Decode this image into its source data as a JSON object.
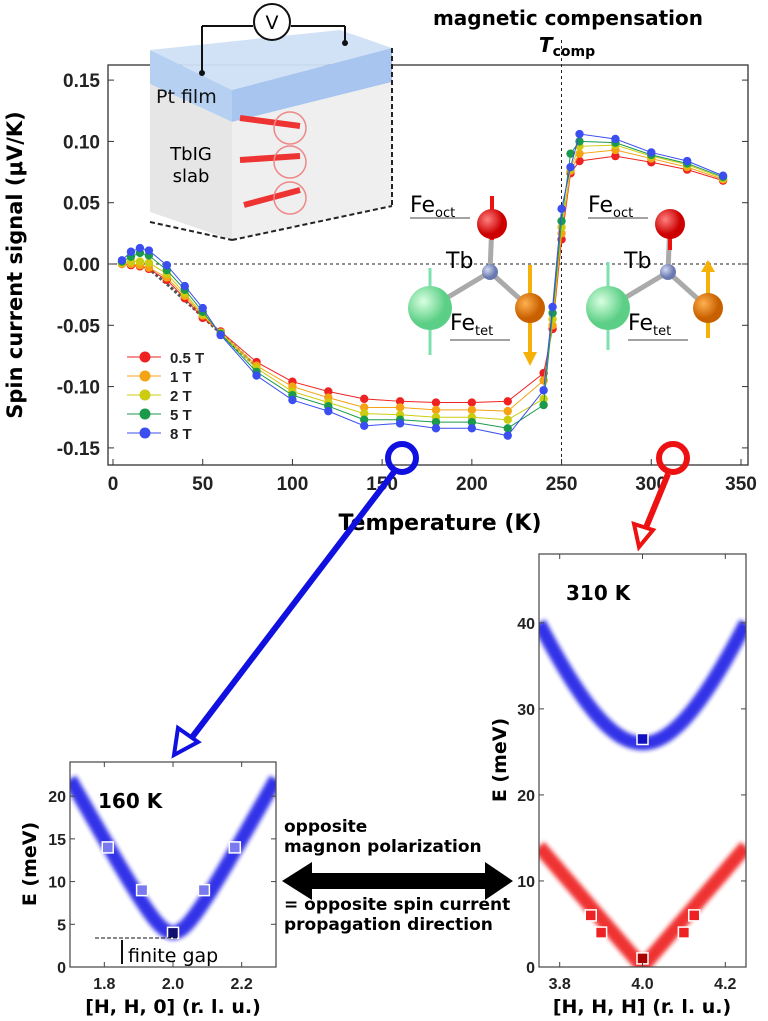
{
  "header": {
    "line1": "magnetic compensation",
    "tcomp_T": "T",
    "tcomp_sub": "comp"
  },
  "schematic": {
    "voltmeter": "V",
    "pt_film": "Pt film",
    "slab_line1": "TbIG",
    "slab_line2": "slab"
  },
  "molecule_left": {
    "fe_oct": "Fe",
    "fe_oct_sub": "oct",
    "tb": "Tb",
    "fe_tet": "Fe",
    "fe_tet_sub": "tet"
  },
  "molecule_right": {
    "fe_oct": "Fe",
    "fe_oct_sub": "oct",
    "tb": "Tb",
    "fe_tet": "Fe",
    "fe_tet_sub": "tet"
  },
  "middle_text": {
    "line1": "opposite",
    "line2": "magnon polarization",
    "line3": "= opposite spin current",
    "line4": "propagation direction"
  },
  "chart_data": [
    {
      "type": "line",
      "xlabel": "Temperature (K)",
      "ylabel": "Spin current signal (μV/K)",
      "xlim": [
        0,
        350
      ],
      "ylim": [
        -0.16,
        0.16
      ],
      "xticks": [
        "0",
        "50",
        "100",
        "150",
        "200",
        "250",
        "300",
        "350"
      ],
      "yticks": [
        "0.15",
        "0.10",
        "0.05",
        "0.00",
        "-0.05",
        "-0.10",
        "-0.15"
      ],
      "legend_position": "lower-left",
      "x": [
        5,
        10,
        15,
        20,
        30,
        40,
        50,
        60,
        80,
        100,
        120,
        140,
        160,
        180,
        200,
        220,
        240,
        245,
        250,
        255,
        260,
        280,
        300,
        320,
        340
      ],
      "series": [
        {
          "name": "0.5 T",
          "color": "#ee2222",
          "values": [
            0.0,
            -0.001,
            -0.002,
            -0.004,
            -0.013,
            -0.028,
            -0.044,
            -0.055,
            -0.08,
            -0.096,
            -0.104,
            -0.11,
            -0.112,
            -0.113,
            -0.113,
            -0.112,
            -0.089,
            -0.053,
            0.02,
            0.074,
            0.084,
            0.088,
            0.083,
            0.077,
            0.068
          ]
        },
        {
          "name": "1 T",
          "color": "#f5a214",
          "values": [
            0.0,
            0.0,
            -0.001,
            -0.003,
            -0.011,
            -0.026,
            -0.042,
            -0.056,
            -0.083,
            -0.1,
            -0.109,
            -0.117,
            -0.117,
            -0.119,
            -0.119,
            -0.12,
            -0.095,
            -0.05,
            0.025,
            0.076,
            0.09,
            0.093,
            0.086,
            0.079,
            0.069
          ]
        },
        {
          "name": "2 T",
          "color": "#cccc10",
          "values": [
            0.001,
            0.002,
            0.002,
            0.001,
            -0.008,
            -0.024,
            -0.041,
            -0.056,
            -0.085,
            -0.104,
            -0.113,
            -0.122,
            -0.123,
            -0.125,
            -0.125,
            -0.127,
            -0.11,
            -0.045,
            0.03,
            0.078,
            0.096,
            0.097,
            0.088,
            0.081,
            0.07
          ]
        },
        {
          "name": "5 T",
          "color": "#1a9a4a",
          "values": [
            0.002,
            0.006,
            0.009,
            0.007,
            -0.005,
            -0.021,
            -0.039,
            -0.057,
            -0.088,
            -0.107,
            -0.116,
            -0.127,
            -0.127,
            -0.129,
            -0.129,
            -0.134,
            -0.115,
            -0.04,
            0.035,
            0.09,
            0.1,
            0.099,
            0.089,
            0.082,
            0.071
          ]
        },
        {
          "name": "8 T",
          "color": "#3b4ef0",
          "values": [
            0.003,
            0.01,
            0.013,
            0.011,
            -0.001,
            -0.018,
            -0.036,
            -0.058,
            -0.091,
            -0.111,
            -0.12,
            -0.132,
            -0.13,
            -0.134,
            -0.134,
            -0.14,
            -0.103,
            -0.035,
            0.045,
            0.079,
            0.106,
            0.102,
            0.091,
            0.084,
            0.072
          ]
        }
      ],
      "reference_lines": {
        "y": 0,
        "x": 250
      },
      "markers": [
        {
          "T": 160,
          "color": "#1010e0"
        },
        {
          "T": 310,
          "color": "#ee1111"
        }
      ]
    },
    {
      "type": "heatmap",
      "annotation": "160 K",
      "xlabel": "[H, H, 0] (r. l. u.)",
      "ylabel": "E (meV)",
      "xlim": [
        1.7,
        2.3
      ],
      "ylim": [
        0,
        24
      ],
      "xticks": [
        "1.8",
        "2.0",
        "2.2"
      ],
      "yticks": [
        "0",
        "5",
        "10",
        "15",
        "20"
      ],
      "bands": [
        {
          "color": "#1a1ae6",
          "gap": 4,
          "edge_energy": 22
        }
      ],
      "points": [
        {
          "x": 1.81,
          "y": 14
        },
        {
          "x": 1.91,
          "y": 9
        },
        {
          "x": 2.0,
          "y": 4
        },
        {
          "x": 2.09,
          "y": 9
        },
        {
          "x": 2.18,
          "y": 14
        }
      ],
      "gap_label": "finite gap"
    },
    {
      "type": "heatmap",
      "annotation": "310 K",
      "xlabel": "[H, H, H] (r. l. u.)",
      "ylabel": "E (meV)",
      "xlim": [
        3.75,
        4.25
      ],
      "ylim": [
        0,
        48
      ],
      "xticks": [
        "3.8",
        "4.0",
        "4.2"
      ],
      "yticks": [
        "0",
        "10",
        "20",
        "30",
        "40"
      ],
      "bands": [
        {
          "color": "#1a1ae6",
          "gap": 26,
          "edge_energy": 40
        },
        {
          "color": "#ee1a1a",
          "gap": 0,
          "edge_energy": 14
        }
      ],
      "points": [
        {
          "x": 4.0,
          "y": 26.5,
          "color": "#1010c0"
        },
        {
          "x": 3.875,
          "y": 6,
          "color": "#ee2222"
        },
        {
          "x": 3.9,
          "y": 4,
          "color": "#ee2222"
        },
        {
          "x": 4.0,
          "y": 1,
          "color": "#aa0000"
        },
        {
          "x": 4.1,
          "y": 4,
          "color": "#ee2222"
        },
        {
          "x": 4.125,
          "y": 6,
          "color": "#ee2222"
        }
      ]
    }
  ]
}
